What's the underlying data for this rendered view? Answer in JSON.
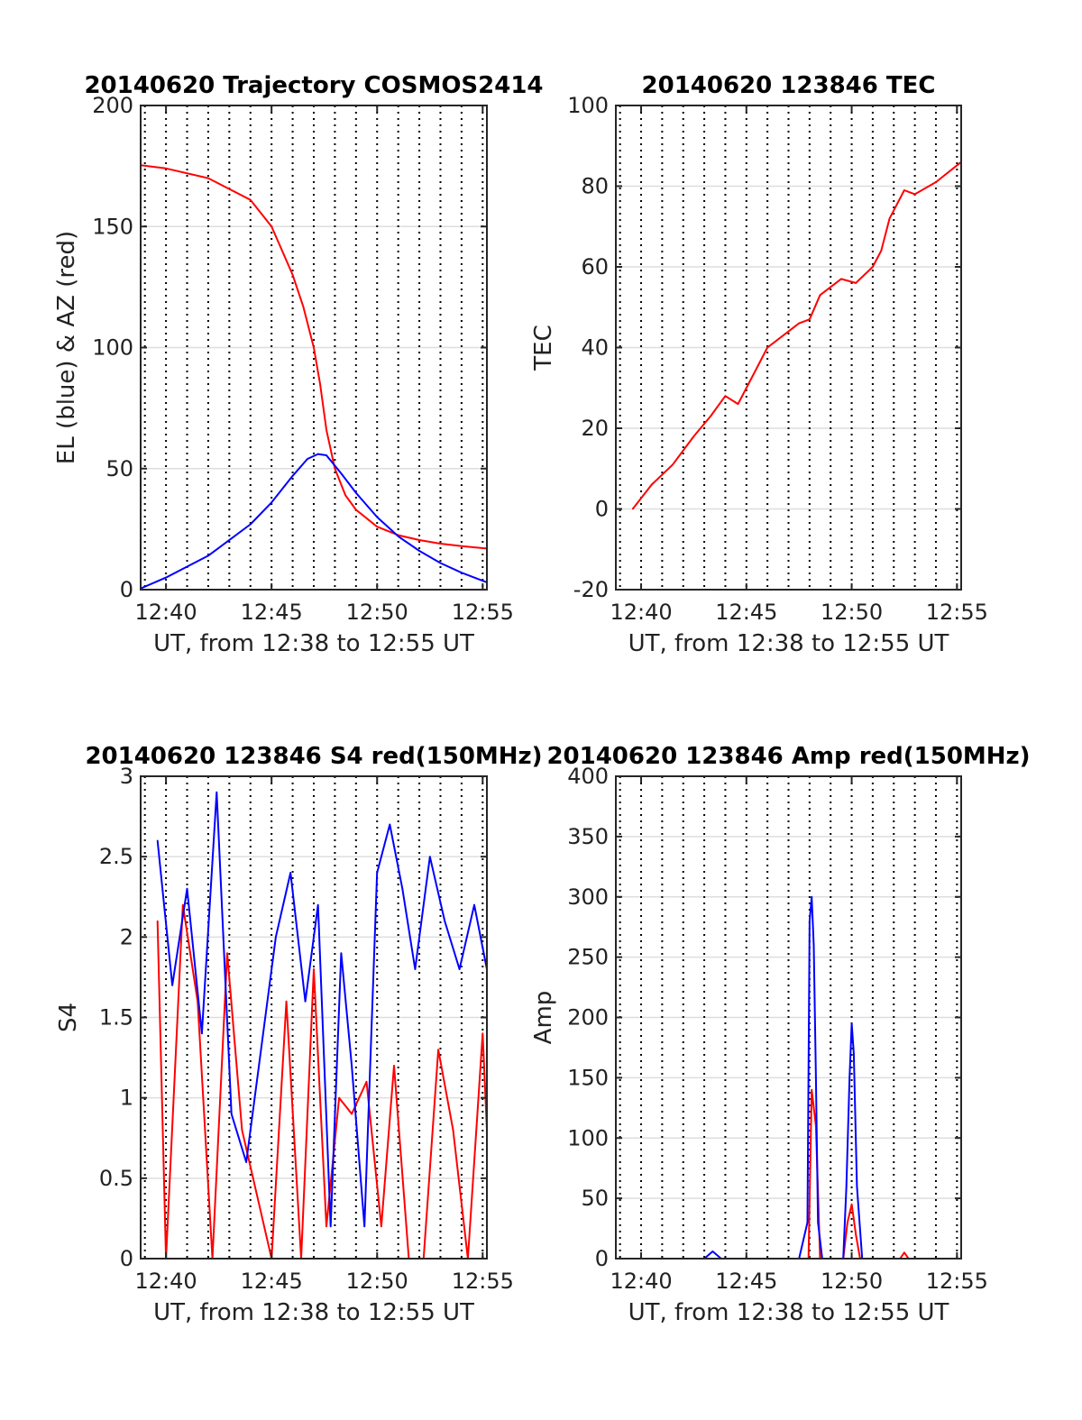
{
  "chart_data": [
    {
      "type": "line",
      "title": "20140620 Trajectory COSMOS2414",
      "xlabel": "UT, from 12:38 to 12:55 UT",
      "ylabel": "EL (blue) & AZ (red)",
      "x_tick_labels": [
        "12:40",
        "12:45",
        "12:50",
        "12:55"
      ],
      "y_ticks": [
        0,
        50,
        100,
        150,
        200
      ],
      "xlim_min": [
        758.8,
        775.2
      ],
      "ylim": [
        0,
        200
      ],
      "grid": true,
      "series": [
        {
          "color": "#ff0000",
          "x_min": [
            758.8,
            760,
            762,
            764,
            765,
            766,
            766.5,
            767,
            767.3,
            767.6,
            768,
            768.5,
            769,
            770,
            771,
            772,
            773,
            774,
            775.2
          ],
          "values": [
            175.3,
            174,
            170,
            161,
            150,
            130,
            117,
            100,
            85,
            66,
            50,
            39,
            33,
            26,
            22.5,
            20.5,
            19,
            18,
            17
          ]
        },
        {
          "color": "#0000ff",
          "x_min": [
            758.8,
            760,
            762,
            764,
            765,
            766,
            766.7,
            767.2,
            767.6,
            768.3,
            769,
            770,
            771,
            772,
            773,
            774,
            775.2
          ],
          "values": [
            0.5,
            5,
            14,
            27,
            36,
            47,
            54,
            56,
            55.5,
            48,
            40,
            30,
            22,
            16,
            11,
            7,
            3
          ]
        }
      ]
    },
    {
      "type": "line",
      "title": "20140620 123846 TEC",
      "xlabel": "UT, from 12:38 to 12:55 UT",
      "ylabel": "TEC",
      "x_tick_labels": [
        "12:40",
        "12:45",
        "12:50",
        "12:55"
      ],
      "y_ticks": [
        -20,
        0,
        20,
        40,
        60,
        80,
        100
      ],
      "xlim_min": [
        758.8,
        775.2
      ],
      "ylim": [
        -20,
        100
      ],
      "grid": true,
      "series": [
        {
          "color": "#ff0000",
          "x_min": [
            759.6,
            760.5,
            761.5,
            762.5,
            763.3,
            764,
            764.6,
            765.5,
            766,
            767,
            767.5,
            768,
            768.5,
            769.5,
            770.2,
            771,
            771.4,
            771.8,
            772.5,
            773,
            774,
            775.2
          ],
          "values": [
            0,
            6,
            11,
            18,
            23,
            28,
            26,
            35,
            40,
            44,
            46,
            47,
            53,
            57,
            56,
            60,
            64,
            72,
            79,
            78,
            81,
            86
          ]
        }
      ]
    },
    {
      "type": "line",
      "title": "20140620 123846 S4 red(150MHz)",
      "xlabel": "UT, from 12:38 to 12:55 UT",
      "ylabel": "S4",
      "x_tick_labels": [
        "12:40",
        "12:45",
        "12:50",
        "12:55"
      ],
      "y_ticks": [
        0,
        0.5,
        1,
        1.5,
        2,
        2.5,
        3
      ],
      "xlim_min": [
        758.8,
        775.2
      ],
      "ylim": [
        0,
        3
      ],
      "grid": true,
      "series": [
        {
          "color": "#ff0000",
          "x_min": [
            759.6,
            760,
            760.8,
            761.5,
            762.2,
            762.9,
            763.6,
            764.3,
            765,
            765.7,
            766.4,
            767,
            767.6,
            768.2,
            768.8,
            769.5,
            770.2,
            770.8,
            771.5,
            772.2,
            772.9,
            773.6,
            774.3,
            775,
            775.2
          ],
          "values": [
            2.1,
            0,
            2.2,
            1.6,
            0,
            1.9,
            0.8,
            0.4,
            0,
            1.6,
            0,
            1.8,
            0.2,
            1.0,
            0.9,
            1.1,
            0.2,
            1.2,
            0,
            0,
            1.3,
            0.8,
            0,
            1.4,
            0.8
          ]
        },
        {
          "color": "#0000ff",
          "x_min": [
            759.6,
            760.3,
            761,
            761.7,
            762.4,
            763.1,
            763.8,
            764.5,
            765.2,
            765.9,
            766.6,
            767.2,
            767.8,
            768.3,
            768.8,
            769.4,
            770,
            770.6,
            771.2,
            771.8,
            772.5,
            773.2,
            773.9,
            774.6,
            775.2
          ],
          "values": [
            2.6,
            1.7,
            2.3,
            1.4,
            2.9,
            0.9,
            0.6,
            1.3,
            2.0,
            2.4,
            1.6,
            2.2,
            0.2,
            1.9,
            1.2,
            0.2,
            2.4,
            2.7,
            2.3,
            1.8,
            2.5,
            2.1,
            1.8,
            2.2,
            1.8
          ]
        }
      ]
    },
    {
      "type": "line",
      "title": "20140620 123846 Amp red(150MHz)",
      "xlabel": "UT, from 12:38 to 12:55 UT",
      "ylabel": "Amp",
      "x_tick_labels": [
        "12:40",
        "12:45",
        "12:50",
        "12:55"
      ],
      "y_ticks": [
        0,
        50,
        100,
        150,
        200,
        250,
        300,
        350,
        400
      ],
      "xlim_min": [
        758.8,
        775.2
      ],
      "ylim": [
        0,
        400
      ],
      "grid": true,
      "series": [
        {
          "color": "#ff0000",
          "x_min": [
            759.6,
            767.5,
            767.95,
            768.1,
            768.3,
            768.5,
            769.6,
            769.8,
            770,
            770.2,
            770.4,
            772.3,
            772.5,
            772.7,
            775.2
          ],
          "values": [
            0,
            0,
            0,
            140,
            110,
            0,
            0,
            30,
            45,
            20,
            0,
            0,
            5,
            0,
            0
          ]
        },
        {
          "color": "#0000ff",
          "x_min": [
            759.6,
            763,
            763.4,
            763.8,
            767.5,
            767.9,
            768,
            768.1,
            768.2,
            768.3,
            768.4,
            768.6,
            769.6,
            769.75,
            769.9,
            770,
            770.1,
            770.25,
            770.5,
            775.2
          ],
          "values": [
            0,
            0,
            6,
            0,
            0,
            30,
            280,
            300,
            260,
            150,
            30,
            0,
            0,
            60,
            150,
            195,
            170,
            60,
            0,
            0
          ]
        }
      ]
    }
  ]
}
